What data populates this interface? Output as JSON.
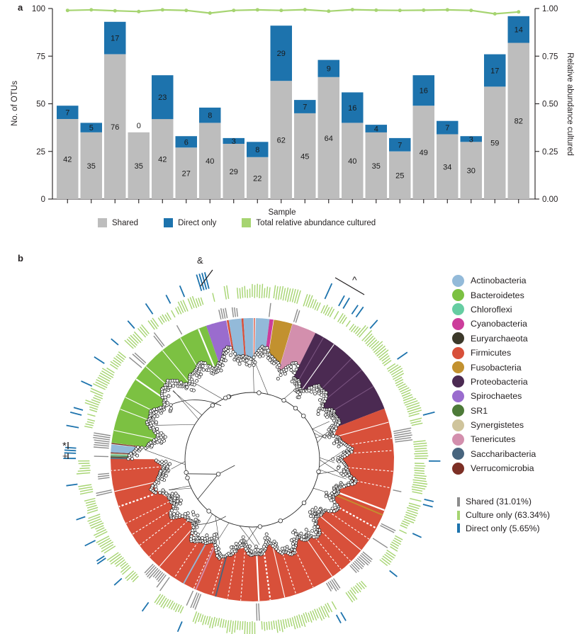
{
  "panels": {
    "a": "a",
    "b": "b"
  },
  "chart_data": [
    {
      "id": "panel_a_bars",
      "type": "bar",
      "stacked": true,
      "n_samples": 20,
      "series": [
        {
          "name": "Shared",
          "color": "#bdbdbd",
          "values": [
            42,
            35,
            76,
            35,
            42,
            27,
            40,
            29,
            22,
            62,
            45,
            64,
            40,
            35,
            25,
            49,
            34,
            30,
            59,
            82
          ]
        },
        {
          "name": "Direct only",
          "color": "#1d73ad",
          "values": [
            7,
            5,
            17,
            0,
            23,
            6,
            8,
            3,
            8,
            29,
            7,
            9,
            16,
            4,
            7,
            16,
            7,
            3,
            17,
            14
          ]
        }
      ],
      "line_series": {
        "name": "Total relative abundance cultured",
        "color": "#a6d471",
        "values": [
          0.99,
          0.993,
          0.988,
          0.984,
          0.993,
          0.99,
          0.976,
          0.99,
          0.993,
          0.99,
          0.994,
          0.986,
          0.994,
          0.991,
          0.99,
          0.991,
          0.993,
          0.99,
          0.972,
          0.982
        ]
      },
      "xlabel": "Sample",
      "ylabel": "No. of OTUs",
      "ylabel_right": "Relative abundance cultured",
      "ylim_left": [
        0,
        100
      ],
      "yticks_left": [
        0,
        25,
        50,
        75,
        100
      ],
      "ylim_right": [
        0,
        1
      ],
      "yticks_right": [
        "0.00",
        "0.25",
        "0.50",
        "0.75",
        "1.00"
      ],
      "grid": false,
      "legend_position": "bottom"
    },
    {
      "id": "panel_b_tree",
      "type": "circular_phylogenetic_tree",
      "phyla": [
        {
          "name": "Actinobacteria",
          "color": "#93bad9"
        },
        {
          "name": "Bacteroidetes",
          "color": "#7cc142"
        },
        {
          "name": "Chloroflexi",
          "color": "#66cda2"
        },
        {
          "name": "Cyanobacteria",
          "color": "#cc3d9b"
        },
        {
          "name": "Euryarchaeota",
          "color": "#3c392a"
        },
        {
          "name": "Firmicutes",
          "color": "#d8503a"
        },
        {
          "name": "Fusobacteria",
          "color": "#c2912f"
        },
        {
          "name": "Proteobacteria",
          "color": "#4b2a52"
        },
        {
          "name": "Spirochaetes",
          "color": "#9a6cce"
        },
        {
          "name": "SR1",
          "color": "#4d7a38"
        },
        {
          "name": "Synergistetes",
          "color": "#cfc49c"
        },
        {
          "name": "Tenericutes",
          "color": "#d38fad"
        },
        {
          "name": "Saccharibacteria",
          "color": "#48657e"
        },
        {
          "name": "Verrucomicrobia",
          "color": "#7c2f25"
        }
      ],
      "rings": [
        {
          "name": "Shared",
          "pct": 31.01,
          "label": "Shared (31.01%)",
          "color": "#8c8c8c"
        },
        {
          "name": "Culture only",
          "pct": 63.34,
          "label": "Culture only (63.34%)",
          "color": "#a6d471"
        },
        {
          "name": "Direct only",
          "pct": 5.65,
          "label": "Direct only (5.65%)",
          "color": "#1d73ad"
        }
      ],
      "segments": [
        {
          "phylum": "Spirochaetes",
          "start": 341.0,
          "end": 349.6,
          "inner": 150
        },
        {
          "phylum": "Firmicutes",
          "start": 349.6,
          "end": 350.4,
          "inner": 148
        },
        {
          "phylum": "Actinobacteria",
          "start": 350.4,
          "end": 355.6,
          "inner": 146
        },
        {
          "phylum": "Firmicutes",
          "start": 355.6,
          "end": 356.4,
          "inner": 146
        },
        {
          "phylum": "Actinobacteria",
          "start": 356.4,
          "end": 360.7,
          "inner": 146
        },
        {
          "phylum": "Firmicutes",
          "start": 360.7,
          "end": 361.4,
          "inner": 146
        },
        {
          "phylum": "Actinobacteria",
          "start": 361.4,
          "end": 367.0,
          "inner": 147
        },
        {
          "phylum": "Cyanobacteria",
          "start": 367.0,
          "end": 368.8,
          "inner": 150
        },
        {
          "phylum": "Fusobacteria",
          "start": 368.8,
          "end": 376.5,
          "inner": 149
        },
        {
          "phylum": "Tenericutes",
          "start": 376.5,
          "end": 386.5,
          "inner": 145
        },
        {
          "phylum": "Proteobacteria",
          "start": 386.5,
          "end": 428.8,
          "inner": 130
        },
        {
          "phylum": "Firmicutes",
          "start": 428.8,
          "end": 630.3,
          "inner": 133
        },
        {
          "phylum": "Saccharibacteria",
          "start": 630.3,
          "end": 630.8,
          "inner": 168
        },
        {
          "phylum": "Euryarchaeota",
          "start": 630.8,
          "end": 631.3,
          "inner": 168
        },
        {
          "phylum": "SR1",
          "start": 631.3,
          "end": 631.8,
          "inner": 168
        },
        {
          "phylum": "Chloroflexi",
          "start": 631.8,
          "end": 632.2,
          "inner": 168
        },
        {
          "phylum": "Synergistetes",
          "start": 632.2,
          "end": 632.6,
          "inner": 168
        },
        {
          "phylum": "Verrucomicrobia",
          "start": 632.6,
          "end": 633.0,
          "inner": 168
        },
        {
          "phylum": "Actinobacteria",
          "start": 633.0,
          "end": 636.4,
          "inner": 166
        },
        {
          "phylum": "Verrucomicrobia",
          "start": 636.4,
          "end": 636.9,
          "inner": 158
        },
        {
          "phylum": "Bacteroidetes",
          "start": 636.9,
          "end": 701.0,
          "inner": 152
        }
      ],
      "slivers": [
        {
          "angle": 113.0,
          "phylum": "Fusobacteria"
        },
        {
          "angle": 195.0,
          "phylum": "Saccharibacteria"
        },
        {
          "angle": 203.5,
          "phylum": "Tenericutes"
        },
        {
          "angle": 209.0,
          "phylum": "Actinobacteria"
        }
      ],
      "direct_only_angles": [
        24.4,
        29.5,
        30.9,
        34.3,
        35.7,
        41.5,
        55,
        75,
        90.5,
        103,
        104.5,
        115,
        129,
        150,
        151.5,
        203.5,
        216,
        228,
        236.5,
        243,
        251,
        262,
        270.8,
        271.8,
        273.2,
        274.0,
        280.3,
        285,
        286.5,
        295,
        303,
        310.5,
        318,
        326,
        332.5,
        337.2,
        343.2,
        344.0,
        344.8,
        345.6
      ],
      "n_tips": 430,
      "annotations": [
        {
          "symbol": "&",
          "x": 278,
          "y": 372
        },
        {
          "symbol": "^",
          "x": 497,
          "y": 400
        },
        {
          "symbol": "*",
          "x": 88,
          "y": 630
        },
        {
          "symbol": "+",
          "x": 88,
          "y": 644
        }
      ]
    }
  ]
}
